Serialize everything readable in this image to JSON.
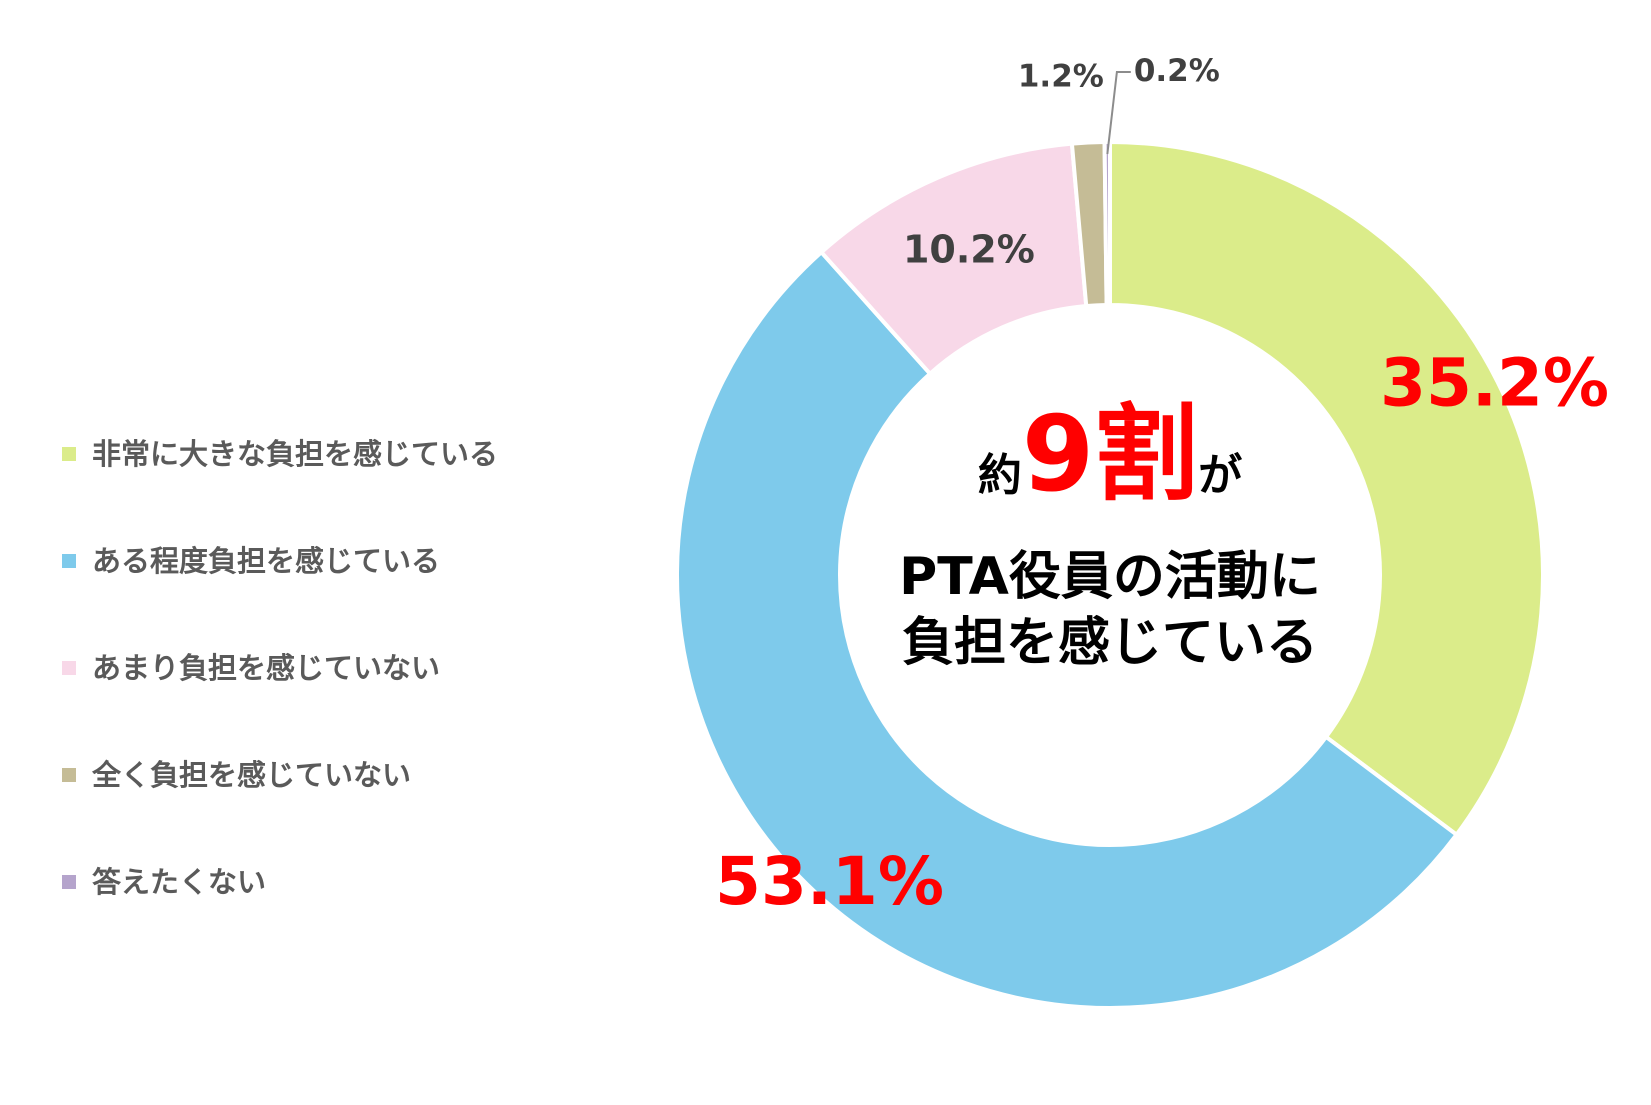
{
  "chart_data": {
    "type": "pie",
    "style": "donut",
    "title": "",
    "categories": [
      "非常に大きな負担を感じている",
      "ある程度負担を感じている",
      "あまり負担を感じていない",
      "全く負担を感じていない",
      "答えたくない"
    ],
    "values": [
      35.2,
      53.1,
      10.2,
      1.2,
      0.2
    ],
    "value_labels": [
      "35.2%",
      "53.1%",
      "10.2%",
      "1.2%",
      "0.2%"
    ],
    "colors": [
      "#dbec8a",
      "#7ecaeb",
      "#f8d8e8",
      "#c5bc96",
      "#b5a4cc"
    ],
    "label_colors": [
      "#ff0000",
      "#ff0000",
      "#404040",
      "#404040",
      "#404040"
    ],
    "legend_position": "left",
    "center_annotation": {
      "line1_prefix": "約",
      "line1_highlight": "9割",
      "line1_suffix": "が",
      "line2": "PTA役員の活動に",
      "line3": "負担を感じている",
      "highlight_color": "#ff0000"
    }
  }
}
